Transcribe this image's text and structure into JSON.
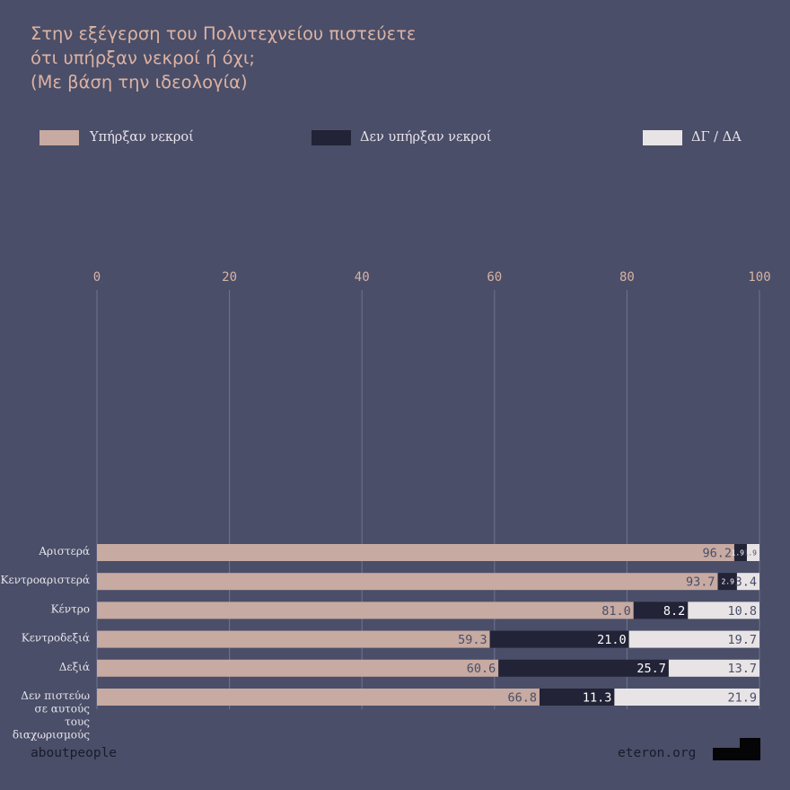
{
  "title_lines": [
    "Στην εξέγερση του Πολυτεχνείου πιστεύετε",
    "ότι υπήρξαν νεκροί ή όχι;",
    "(Με βάση την ιδεολογία)"
  ],
  "legend": [
    {
      "label": "Υπήρξαν νεκροί",
      "color": "#c7aaa1"
    },
    {
      "label": "Δεν υπήρξαν νεκροί",
      "color": "#222336"
    },
    {
      "label": "ΔΓ / ΔΑ",
      "color": "#e8e4e6"
    }
  ],
  "footer": {
    "left": "aboutpeople",
    "right": "eteron.org"
  },
  "chart_data": {
    "type": "bar",
    "orientation": "horizontal",
    "stacked": true,
    "xlim": [
      0,
      100
    ],
    "ticks": [
      "0",
      "20",
      "40",
      "60",
      "80",
      "100"
    ],
    "tick_values": [
      0,
      20,
      40,
      60,
      80,
      100
    ],
    "grid": true,
    "legend_position": "top",
    "categories": [
      [
        "Αριστερά"
      ],
      [
        "Κεντροαριστερά"
      ],
      [
        "Κέντρο"
      ],
      [
        "Κεντροδεξιά"
      ],
      [
        "Δεξιά"
      ],
      [
        "Δεν πιστεύω",
        "σε αυτούς",
        "τους",
        "διαχωρισμούς"
      ]
    ],
    "series": [
      {
        "name": "Υπήρξαν νεκροί",
        "values": [
          96.2,
          93.7,
          81.0,
          59.3,
          60.6,
          66.8
        ],
        "labels": [
          "96.2",
          "93.7",
          "81.0",
          "59.3",
          "60.6",
          "66.8"
        ]
      },
      {
        "name": "Δεν υπήρξαν νεκροί",
        "values": [
          1.9,
          2.9,
          8.2,
          21.0,
          25.7,
          11.3
        ],
        "labels": [
          "1.9",
          "2.9",
          "8.2",
          "21.0",
          "25.7",
          "11.3"
        ]
      },
      {
        "name": "ΔΓ / ΔΑ",
        "values": [
          1.9,
          3.4,
          10.8,
          19.7,
          13.7,
          21.9
        ],
        "labels": [
          "1.9",
          "3.4",
          "10.8",
          "19.7",
          "13.7",
          "21.9"
        ]
      }
    ]
  }
}
